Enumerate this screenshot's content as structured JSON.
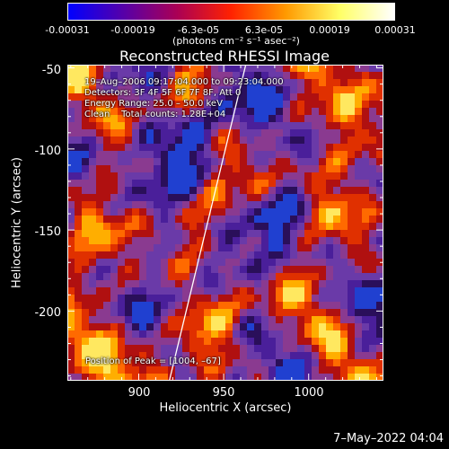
{
  "colorbar": {
    "ticks": [
      "-0.00031",
      "-0.00019",
      "-6.3e-05",
      "6.3e-05",
      "0.00019",
      "0.00031"
    ],
    "unit": "(photons cm⁻² s⁻¹ asec⁻²)",
    "min": -0.00031,
    "max": 0.00031,
    "colormap": [
      "#0000ff",
      "#5500aa",
      "#aa0055",
      "#ff2200",
      "#ff9900",
      "#ffff66",
      "#ffffff"
    ]
  },
  "chart_data": {
    "type": "heatmap",
    "title": "Reconstructed RHESSI Image",
    "xlabel": "Heliocentric X (arcsec)",
    "ylabel": "Heliocentric Y (arcsec)",
    "xlim": [
      858,
      1044
    ],
    "ylim": [
      -243,
      -48
    ],
    "xticks": [
      900,
      950,
      1000
    ],
    "yticks": [
      -50,
      -100,
      -150,
      -200
    ],
    "peak_position": [
      1004,
      -67
    ],
    "limb_line": [
      [
        918,
        -243
      ],
      [
        963,
        -48
      ]
    ]
  },
  "info": {
    "line1": "19–Aug–2006 09:17:04.000 to 09:23:04.000",
    "line2": "Detectors: 3F 4F 5F 6F 7F 8F, Att 0",
    "line3": "Energy Range: 25.0 – 50.0 keV",
    "line4": "Clean    Total counts: 1.28E+04",
    "peak": "Position of Peak = [1004, –67]"
  },
  "timestamp": "7–May–2022 04:04"
}
